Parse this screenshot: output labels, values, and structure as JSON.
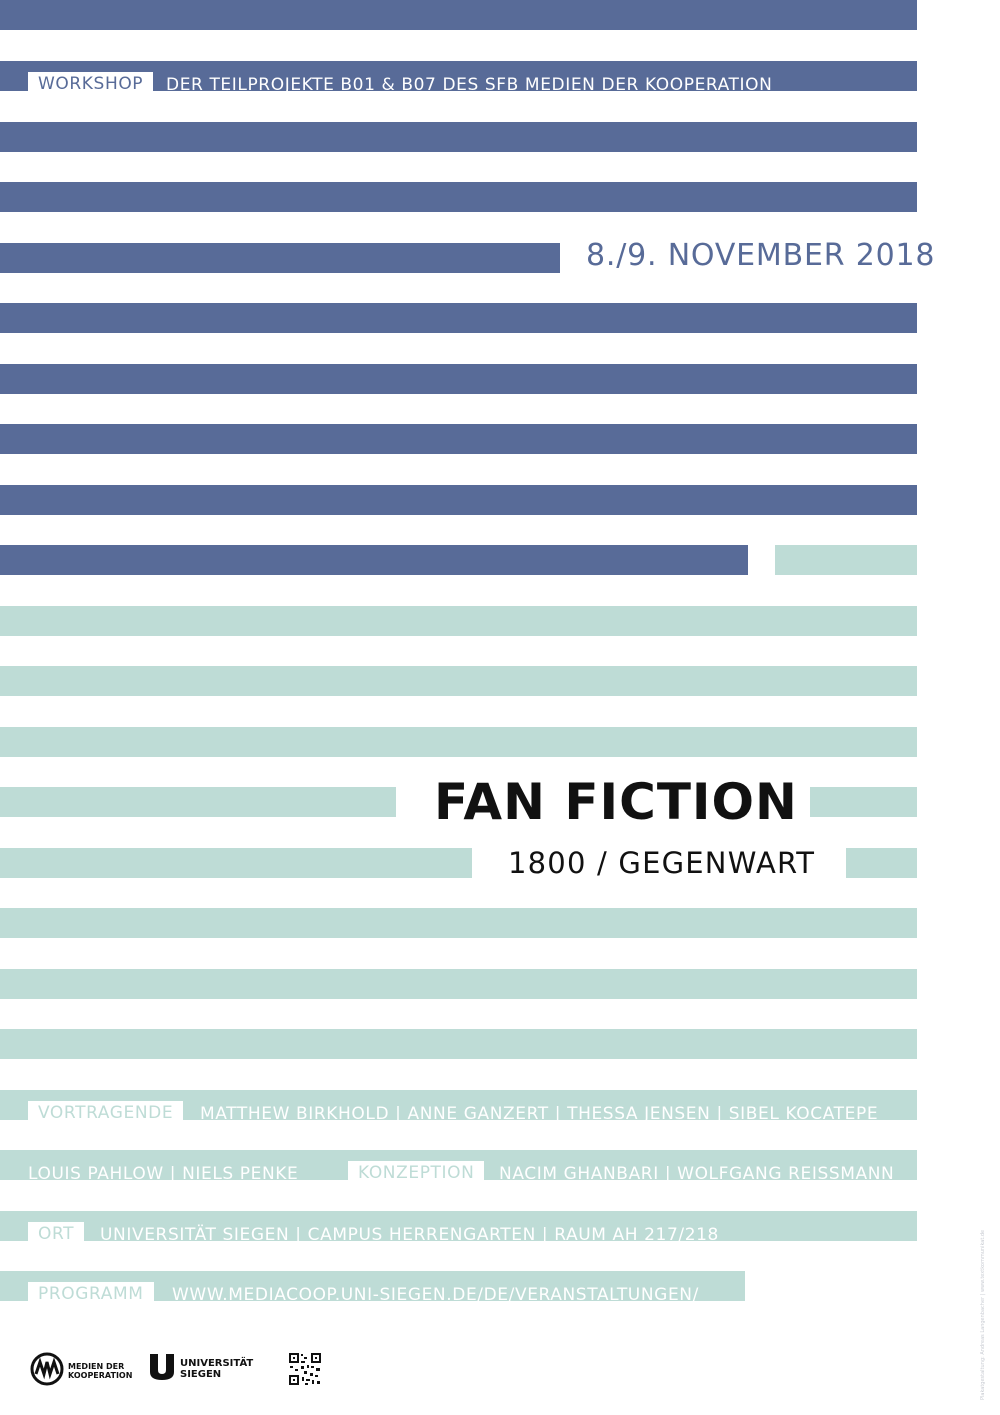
{
  "header": {
    "workshop_label": "WORKSHOP",
    "workshop_text": "DER TEILPROJEKTE B01 & B07 DES SFB MEDIEN DER KOOPERATION",
    "date": "8./9. NOVEMBER 2018"
  },
  "main": {
    "title": "FAN FICTION",
    "subtitle": "1800 / GEGENWART"
  },
  "details": {
    "speakers_label": "VORTRAGENDE",
    "speakers_line1": "MATTHEW BIRKHOLD | ANNE GANZERT | THESSA JENSEN | SIBEL KOCATEPE",
    "speakers_line2": "LOUIS PAHLOW | NIELS PENKE",
    "concept_label": "KONZEPTION",
    "concept_text": "NACIM GHANBARI | WOLFGANG REISSMANN",
    "location_label": "ORT",
    "location_text": "UNIVERSITÄT SIEGEN | CAMPUS HERRENGARTEN | RAUM AH 217/218",
    "program_label": "PROGRAMM",
    "program_text": "WWW.MEDIACOOP.UNI-SIEGEN.DE/DE/VERANSTALTUNGEN/"
  },
  "logos": {
    "mdk_text_line1": "MEDIEN DER",
    "mdk_text_line2": "KOOPERATION",
    "uni_text_line1": "UNIVERSITÄT",
    "uni_text_line2": "SIEGEN",
    "mdk_icon": "media-coop-logo-icon",
    "uni_icon": "uni-siegen-logo-icon",
    "qr_icon": "qr-code-icon"
  },
  "credit": "Plakatgestaltung: Andreas Langenbacher | www.textkommunikat.de",
  "colors": {
    "blue": "#586b98",
    "mint": "#bedcd6",
    "text": "#111111"
  }
}
